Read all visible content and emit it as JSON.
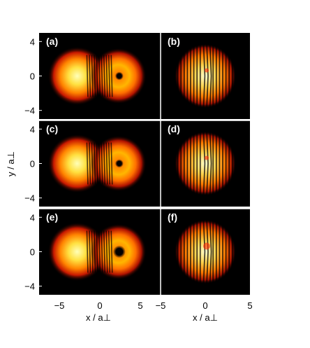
{
  "figure": {
    "panel_labels": [
      "(a)",
      "(b)",
      "(c)",
      "(d)",
      "(e)",
      "(f)"
    ],
    "y_ticks": [
      "4",
      "0",
      "−4"
    ],
    "x_ticks_left": [
      "−5",
      "0",
      "5"
    ],
    "x_ticks_right": [
      "−5",
      "0",
      "5"
    ],
    "y_axis_label": "y / a⊥",
    "x_axis_label_left": "x / a⊥",
    "x_axis_label_right": "x / a⊥"
  },
  "chart_data": [
    {
      "type": "heatmap",
      "panel": "(a)",
      "content": "two overlapping condensates with interference fringes, vortex core in right lobe",
      "xlim": [
        -7.5,
        7.5
      ],
      "ylim": [
        -5,
        5
      ],
      "colormap": "hot"
    },
    {
      "type": "heatmap",
      "panel": "(b)",
      "content": "interference fringe pattern with dislocation",
      "xlim": [
        -5,
        5
      ],
      "ylim": [
        -5,
        5
      ],
      "colormap": "hot"
    },
    {
      "type": "heatmap",
      "panel": "(c)",
      "content": "two overlapping condensates with interference fringes, vortex core in right lobe",
      "xlim": [
        -7.5,
        7.5
      ],
      "ylim": [
        -5,
        5
      ],
      "colormap": "hot"
    },
    {
      "type": "heatmap",
      "panel": "(d)",
      "content": "interference fringe pattern with dislocation",
      "xlim": [
        -5,
        5
      ],
      "ylim": [
        -5,
        5
      ],
      "colormap": "hot"
    },
    {
      "type": "heatmap",
      "panel": "(e)",
      "content": "two overlapping condensates with interference fringes, larger vortex core in right lobe",
      "xlim": [
        -7.5,
        7.5
      ],
      "ylim": [
        -5,
        5
      ],
      "colormap": "hot"
    },
    {
      "type": "heatmap",
      "panel": "(f)",
      "content": "interference fringe pattern with dislocation",
      "xlim": [
        -5,
        5
      ],
      "ylim": [
        -5,
        5
      ],
      "colormap": "hot"
    }
  ]
}
